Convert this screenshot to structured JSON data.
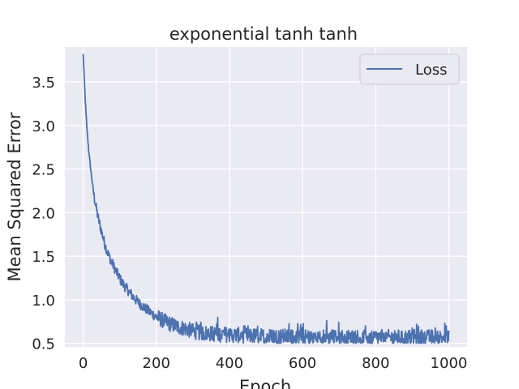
{
  "chart_data": {
    "type": "line",
    "title": "exponential tanh tanh",
    "xlabel": "Epoch",
    "ylabel": "Mean Squared Error",
    "xlim": [
      -50,
      1050
    ],
    "ylim": [
      0.46,
      3.9
    ],
    "xticks": [
      0,
      200,
      400,
      600,
      800,
      1000
    ],
    "yticks": [
      0.5,
      1.0,
      1.5,
      2.0,
      2.5,
      3.0,
      3.5
    ],
    "xtick_labels": [
      "0",
      "200",
      "400",
      "600",
      "800",
      "1000"
    ],
    "ytick_labels": [
      "0.5",
      "1.0",
      "1.5",
      "2.0",
      "2.5",
      "3.0",
      "3.5"
    ],
    "grid": true,
    "legend_position": "top-right",
    "colors": {
      "series": "#4c72b0",
      "background": "#eaeaf2",
      "grid": "#ffffff"
    },
    "series": [
      {
        "name": "Loss",
        "x": [
          0,
          5,
          10,
          15,
          20,
          25,
          30,
          40,
          50,
          60,
          70,
          80,
          90,
          100,
          110,
          125,
          140,
          160,
          180,
          200,
          220,
          240,
          260,
          280,
          300,
          330,
          360,
          400,
          450,
          500,
          550,
          600,
          650,
          700,
          750,
          800,
          850,
          900,
          950,
          1000
        ],
        "values": [
          3.82,
          3.35,
          2.98,
          2.72,
          2.52,
          2.34,
          2.18,
          1.95,
          1.78,
          1.62,
          1.5,
          1.41,
          1.32,
          1.24,
          1.17,
          1.09,
          1.01,
          0.93,
          0.86,
          0.8,
          0.75,
          0.71,
          0.68,
          0.66,
          0.63,
          0.61,
          0.6,
          0.59,
          0.58,
          0.57,
          0.57,
          0.56,
          0.56,
          0.56,
          0.56,
          0.56,
          0.56,
          0.56,
          0.56,
          0.56
        ]
      }
    ]
  }
}
